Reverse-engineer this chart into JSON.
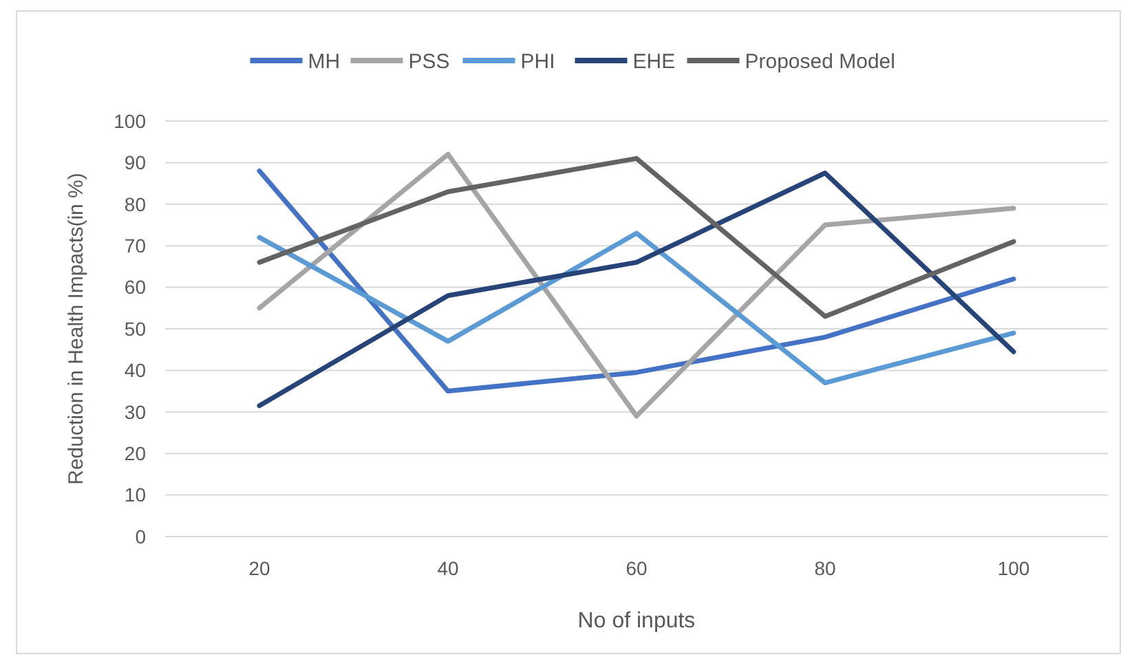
{
  "chart_data": {
    "type": "line",
    "xlabel": "No of inputs",
    "ylabel": "Reduction in Health Impacts(in %)",
    "categories": [
      "20",
      "40",
      "60",
      "80",
      "100"
    ],
    "series": [
      {
        "name": "MH",
        "color": "#4472c4",
        "values": [
          88,
          35,
          39.5,
          48,
          62
        ]
      },
      {
        "name": "PSS",
        "color": "#a5a5a5",
        "values": [
          55,
          92,
          29,
          75,
          79
        ]
      },
      {
        "name": "PHI",
        "color": "#5b9bd5",
        "values": [
          72,
          47,
          73,
          37,
          49
        ]
      },
      {
        "name": "EHE",
        "color": "#264478",
        "values": [
          31.5,
          58,
          66,
          87.5,
          44.5
        ]
      },
      {
        "name": "Proposed Model",
        "color": "#636363",
        "values": [
          66,
          83,
          91,
          53,
          71
        ]
      }
    ],
    "ylim": [
      0,
      100
    ],
    "yticks": [
      0,
      10,
      20,
      30,
      40,
      50,
      60,
      70,
      80,
      90,
      100
    ],
    "grid": "y",
    "legend": "top"
  }
}
